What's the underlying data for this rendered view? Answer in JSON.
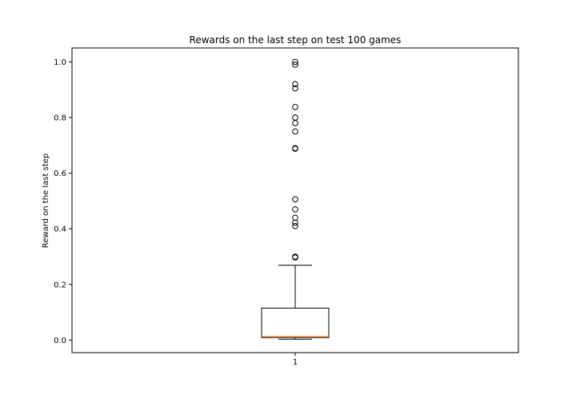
{
  "chart_data": {
    "type": "box",
    "title": "Rewards on the last step on test 100 games",
    "xlabel": "",
    "ylabel": "Reward on the last step",
    "categories": [
      "1"
    ],
    "ylim": [
      -0.045,
      1.05
    ],
    "yticks": [
      0.0,
      0.2,
      0.4,
      0.6,
      0.8,
      1.0
    ],
    "ytick_labels": [
      "0.0",
      "0.2",
      "0.4",
      "0.6",
      "0.8",
      "1.0"
    ],
    "grid": false,
    "box": {
      "whisker_low": 0.003,
      "q1": 0.009,
      "median": 0.013,
      "q3": 0.115,
      "whisker_high": 0.269
    },
    "outliers": [
      1.0,
      0.99,
      0.92,
      0.905,
      0.838,
      0.8,
      0.78,
      0.75,
      0.69,
      0.688,
      0.506,
      0.47,
      0.44,
      0.422,
      0.41,
      0.297,
      0.3
    ],
    "colors": {
      "box": "#000000",
      "median": "#ff7f0e",
      "outlier": "#000000"
    }
  }
}
